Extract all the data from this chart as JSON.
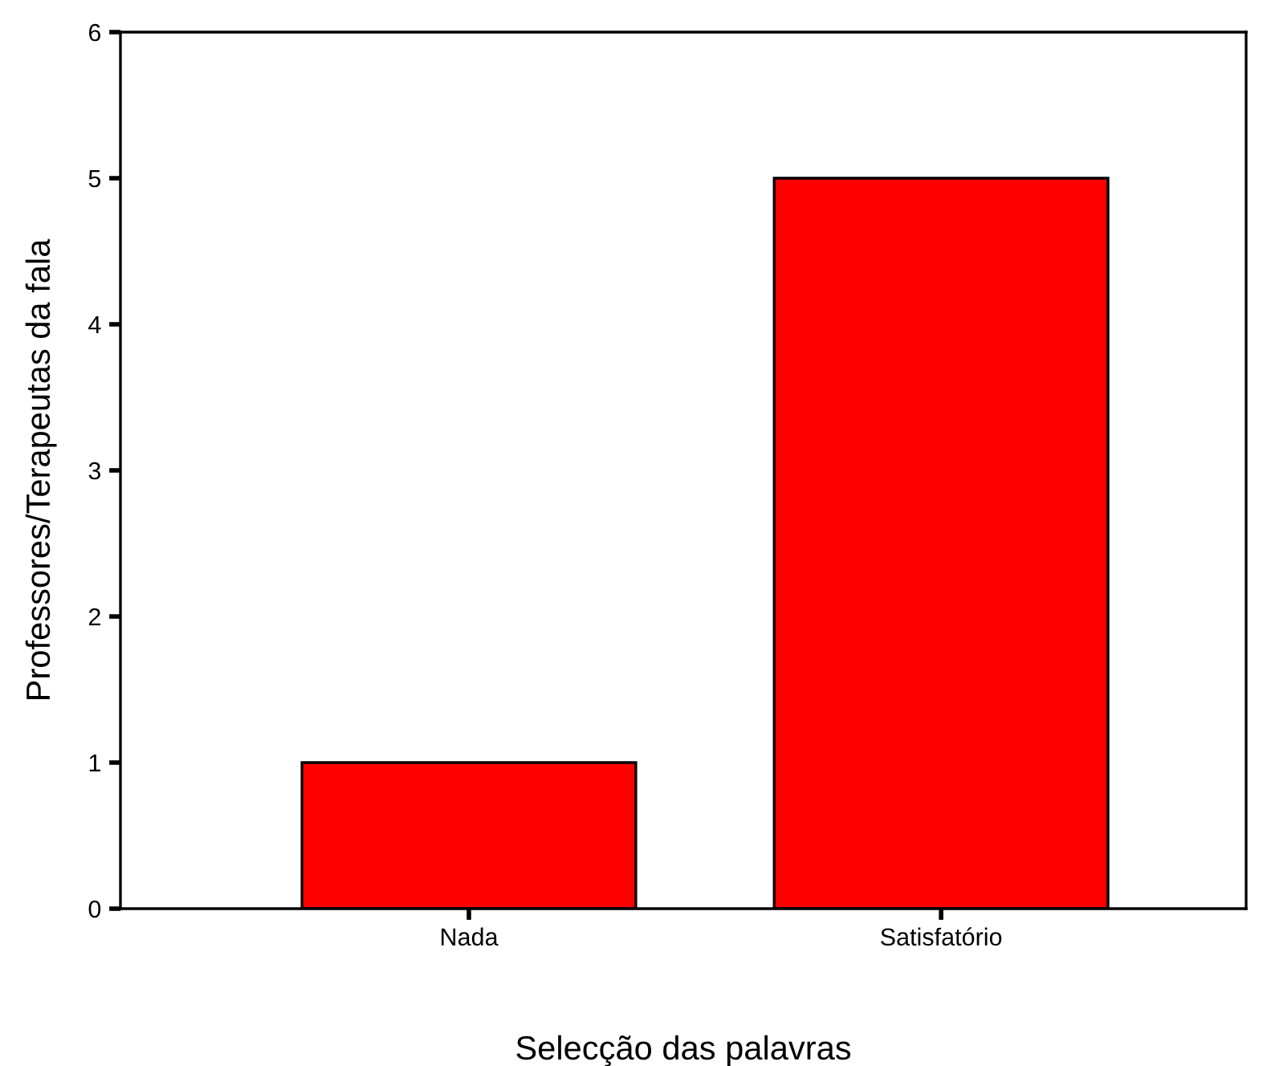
{
  "chart_data": {
    "type": "bar",
    "xlabel": "Selecção das palavras",
    "ylabel": "Professores/Terapeutas da fala",
    "categories": [
      "Nada",
      "Satisfatório"
    ],
    "values": [
      1,
      5
    ],
    "color": "#ff0000",
    "ylim": [
      0,
      6
    ],
    "yticks": [
      0,
      1,
      2,
      3,
      4,
      5,
      6
    ],
    "grid": false,
    "legend": false
  }
}
